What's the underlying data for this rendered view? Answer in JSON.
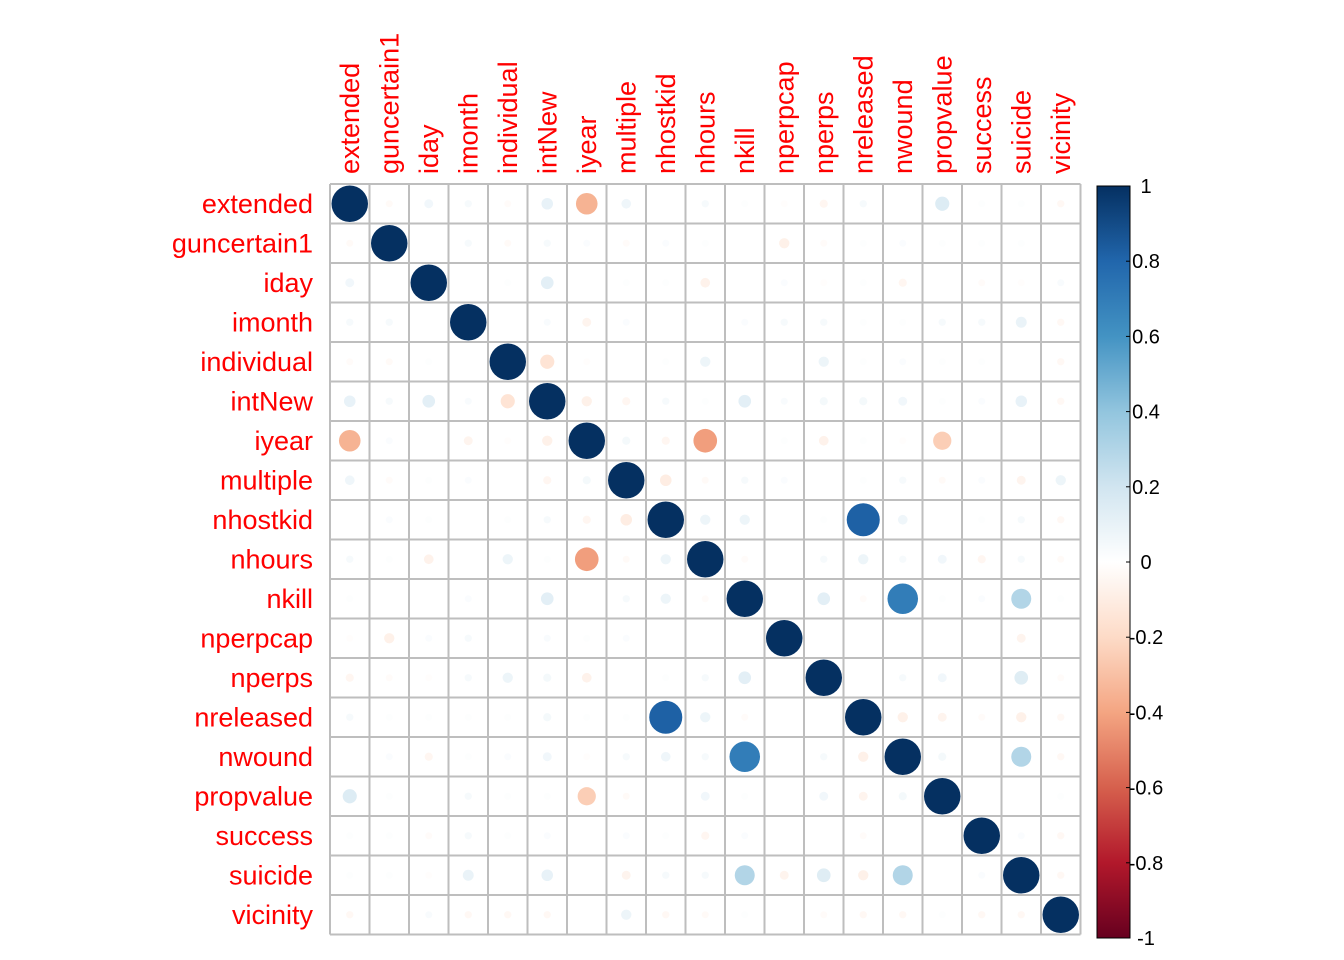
{
  "chart_data": {
    "type": "heatmap",
    "style": "circle correlation matrix",
    "variables": [
      "extended",
      "guncertain1",
      "iday",
      "imonth",
      "individual",
      "intNew",
      "iyear",
      "multiple",
      "nhostkid",
      "nhours",
      "nkill",
      "nperpcap",
      "nperps",
      "nreleased",
      "nwound",
      "propvalue",
      "success",
      "suicide",
      "vicinity"
    ],
    "colorbar": {
      "min": -1,
      "max": 1,
      "ticks": [
        "1",
        "0.8",
        "0.6",
        "0.4",
        "0.2",
        "0",
        "-0.2",
        "-0.4",
        "-0.6",
        "-0.8",
        "-1"
      ],
      "low_color": "#67001F",
      "mid_color": "#FFFFFF",
      "high_color": "#053061"
    },
    "label_color": "#FF0000",
    "grid": true,
    "values": [
      [
        1,
        -0.03,
        0.06,
        0.04,
        -0.02,
        0.1,
        -0.35,
        0.07,
        0,
        0.04,
        0.01,
        -0.01,
        -0.05,
        0.04,
        0,
        0.15,
        0.01,
        0.01,
        -0.04
      ],
      [
        -0.03,
        1,
        0,
        0.04,
        -0.03,
        0.04,
        0.02,
        -0.02,
        0.02,
        0.01,
        0,
        -0.08,
        -0.02,
        0.01,
        0.02,
        0.01,
        0.01,
        0.01,
        0
      ],
      [
        0.06,
        0,
        1,
        0,
        0.01,
        0.12,
        0,
        0.01,
        0.01,
        -0.07,
        0,
        0.02,
        -0.01,
        0.01,
        -0.05,
        0,
        -0.02,
        -0.01,
        0.03
      ],
      [
        0.04,
        0.04,
        0,
        1,
        0,
        0.03,
        -0.06,
        0.02,
        0,
        0,
        0.02,
        0.04,
        0.04,
        0.01,
        0.01,
        0.04,
        0.04,
        0.09,
        -0.04
      ],
      [
        -0.02,
        -0.03,
        0.01,
        0,
        1,
        -0.15,
        -0.01,
        0,
        0.01,
        0.08,
        0,
        0,
        0.08,
        0.01,
        0.02,
        0.01,
        0.01,
        0,
        -0.04
      ],
      [
        0.1,
        0.04,
        0.12,
        0.03,
        -0.15,
        1,
        -0.08,
        -0.05,
        0.04,
        0.01,
        0.12,
        0.03,
        0.05,
        0.05,
        0.06,
        0.01,
        0.02,
        0.1,
        -0.04
      ],
      [
        -0.35,
        0.02,
        0,
        -0.06,
        -0.01,
        -0.08,
        1,
        0.05,
        -0.05,
        -0.42,
        0,
        0.01,
        -0.07,
        0.01,
        -0.01,
        -0.25,
        0,
        0,
        0
      ],
      [
        0.07,
        -0.02,
        0.01,
        0.02,
        0,
        -0.05,
        0.05,
        1,
        -0.1,
        -0.03,
        0.04,
        0.02,
        0,
        0.01,
        0.04,
        -0.03,
        0.02,
        -0.06,
        0.08
      ],
      [
        0,
        0.02,
        0.01,
        0,
        0.01,
        0.04,
        -0.05,
        -0.1,
        1,
        0.08,
        0.08,
        0,
        0.01,
        0.82,
        0.07,
        0,
        0.01,
        0.04,
        -0.04
      ],
      [
        0.04,
        0.01,
        -0.07,
        0,
        0.08,
        0.01,
        -0.42,
        -0.03,
        0.08,
        1,
        -0.02,
        0,
        0.04,
        0.08,
        0.04,
        0.06,
        -0.05,
        0.04,
        -0.03
      ],
      [
        0.01,
        0,
        0,
        0.02,
        0,
        0.12,
        0,
        0.04,
        0.08,
        -0.02,
        1,
        0,
        0.12,
        -0.02,
        0.7,
        0.01,
        0.02,
        0.3,
        0.01
      ],
      [
        -0.01,
        -0.08,
        0.02,
        0.04,
        0,
        0.03,
        0.01,
        0.02,
        0,
        0,
        0,
        1,
        0,
        0,
        0,
        0,
        0,
        -0.06,
        0
      ],
      [
        -0.05,
        -0.02,
        -0.01,
        0.04,
        0.08,
        0.05,
        -0.07,
        0,
        0.01,
        0.04,
        0.12,
        0,
        1,
        0,
        0.04,
        0.06,
        0,
        0.14,
        -0.02
      ],
      [
        0.04,
        0.01,
        0.01,
        0.01,
        0.01,
        0.05,
        0.01,
        0.01,
        0.82,
        0.08,
        -0.02,
        0,
        0,
        1,
        -0.08,
        -0.06,
        -0.02,
        -0.08,
        -0.04
      ],
      [
        0,
        0.02,
        -0.05,
        0.01,
        0.02,
        0.06,
        -0.01,
        0.04,
        0.07,
        0.04,
        0.7,
        0,
        0.04,
        -0.08,
        1,
        0.05,
        0,
        0.3,
        -0.04
      ],
      [
        0.15,
        0.01,
        0,
        0.04,
        0.01,
        0.01,
        -0.25,
        -0.03,
        0,
        0.06,
        0.01,
        0,
        0.06,
        -0.06,
        0.05,
        1,
        0,
        0,
        0.01
      ],
      [
        0.01,
        0.01,
        -0.02,
        0.04,
        0.01,
        0.02,
        0,
        0.02,
        0.01,
        -0.05,
        0.02,
        0,
        0,
        -0.02,
        0,
        0,
        1,
        0.02,
        -0.04
      ],
      [
        0.01,
        0.01,
        -0.01,
        0.09,
        0,
        0.1,
        0,
        -0.06,
        0.04,
        0.04,
        0.3,
        -0.06,
        0.14,
        -0.08,
        0.3,
        0,
        0.02,
        1,
        -0.04
      ],
      [
        -0.04,
        0,
        0.03,
        -0.04,
        -0.04,
        -0.04,
        0,
        0.08,
        -0.04,
        -0.03,
        0.01,
        0,
        -0.02,
        -0.04,
        -0.04,
        0.01,
        -0.04,
        -0.04,
        1
      ]
    ]
  }
}
